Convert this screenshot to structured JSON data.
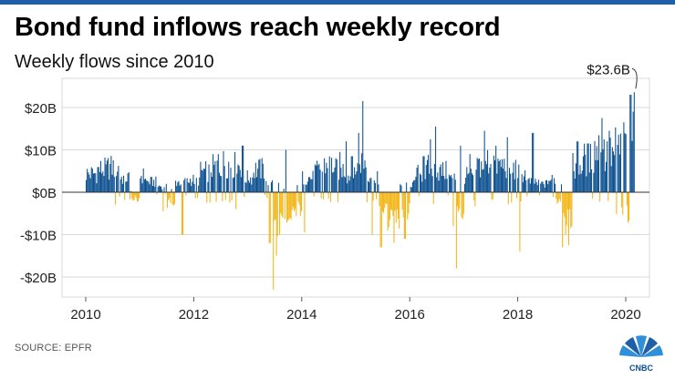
{
  "header": {
    "title": "Bond fund inflows reach weekly record",
    "subtitle": "Weekly flows since 2010"
  },
  "footer": {
    "source": "SOURCE: EPFR",
    "logo_text": "CNBC"
  },
  "colors": {
    "positive": "#0a4f8f",
    "negative": "#f3b515",
    "accent_bar": "#1f5fa8",
    "grid": "#d9d9d9"
  },
  "chart_data": {
    "type": "bar",
    "x_start": 2010.0,
    "x_end": 2020.15,
    "xlim": [
      2009.8,
      2020.5
    ],
    "ylim": [
      -25,
      25
    ],
    "x_ticks": [
      2010,
      2012,
      2014,
      2016,
      2018,
      2020
    ],
    "x_tick_labels": [
      "2010",
      "2012",
      "2014",
      "2016",
      "2018",
      "2020"
    ],
    "y_ticks": [
      20,
      10,
      0,
      -10,
      -20
    ],
    "y_tick_labels": [
      "$20B",
      "$10B",
      "$0B",
      "-$10B",
      "-$20B"
    ],
    "annotation": {
      "text": "$23.6B",
      "x": 2020.15,
      "y": 23.6
    },
    "grid": true,
    "segments": [
      [
        2010.0,
        2010.2,
        4.5
      ],
      [
        2010.2,
        2010.4,
        5.5
      ],
      [
        2010.4,
        2010.6,
        6.0
      ],
      [
        2010.6,
        2010.8,
        3.5
      ],
      [
        2010.8,
        2011.0,
        -1.5
      ],
      [
        2011.0,
        2011.1,
        4.0
      ],
      [
        2011.1,
        2011.3,
        2.5
      ],
      [
        2011.3,
        2011.5,
        1.5
      ],
      [
        2011.5,
        2011.65,
        -2.5
      ],
      [
        2011.65,
        2011.9,
        2.5
      ],
      [
        2011.9,
        2012.1,
        3.0
      ],
      [
        2012.1,
        2012.3,
        5.0
      ],
      [
        2012.3,
        2012.5,
        6.0
      ],
      [
        2012.5,
        2012.7,
        7.0
      ],
      [
        2012.7,
        2012.9,
        6.5
      ],
      [
        2012.9,
        2013.1,
        3.5
      ],
      [
        2013.1,
        2013.3,
        5.5
      ],
      [
        2013.3,
        2013.45,
        3.0
      ],
      [
        2013.45,
        2013.6,
        -9.0
      ],
      [
        2013.6,
        2013.8,
        -5.0
      ],
      [
        2013.8,
        2014.0,
        -4.0
      ],
      [
        2014.0,
        2014.2,
        3.5
      ],
      [
        2014.2,
        2014.4,
        5.0
      ],
      [
        2014.4,
        2014.6,
        6.5
      ],
      [
        2014.6,
        2014.8,
        5.5
      ],
      [
        2014.8,
        2015.0,
        4.0
      ],
      [
        2015.0,
        2015.2,
        7.5
      ],
      [
        2015.2,
        2015.4,
        4.5
      ],
      [
        2015.4,
        2015.6,
        -3.5
      ],
      [
        2015.6,
        2015.8,
        -6.0
      ],
      [
        2015.8,
        2016.0,
        -4.5
      ],
      [
        2016.0,
        2016.1,
        2.0
      ],
      [
        2016.1,
        2016.3,
        4.5
      ],
      [
        2016.3,
        2016.5,
        6.0
      ],
      [
        2016.5,
        2016.7,
        5.0
      ],
      [
        2016.7,
        2016.85,
        3.5
      ],
      [
        2016.85,
        2017.0,
        -5.0
      ],
      [
        2017.0,
        2017.2,
        4.0
      ],
      [
        2017.2,
        2017.4,
        6.5
      ],
      [
        2017.4,
        2017.6,
        7.5
      ],
      [
        2017.6,
        2017.8,
        6.5
      ],
      [
        2017.8,
        2018.0,
        5.5
      ],
      [
        2018.0,
        2018.15,
        4.5
      ],
      [
        2018.15,
        2018.35,
        2.5
      ],
      [
        2018.35,
        2018.55,
        2.0
      ],
      [
        2018.55,
        2018.7,
        3.0
      ],
      [
        2018.7,
        2018.8,
        -2.5
      ],
      [
        2018.8,
        2019.0,
        -7.0
      ],
      [
        2019.0,
        2019.2,
        6.5
      ],
      [
        2019.2,
        2019.4,
        8.0
      ],
      [
        2019.4,
        2019.6,
        10.5
      ],
      [
        2019.6,
        2019.8,
        9.0
      ],
      [
        2019.8,
        2020.0,
        11.0
      ],
      [
        2020.0,
        2020.15,
        14.0
      ]
    ],
    "spikes": [
      [
        2013.46,
        23.0,
        -1
      ],
      [
        2013.52,
        15.0,
        -1
      ],
      [
        2013.4,
        12.0,
        -1
      ],
      [
        2013.58,
        10.0,
        -1
      ],
      [
        2016.86,
        18.0,
        -1
      ],
      [
        2016.8,
        8.0,
        -1
      ],
      [
        2015.3,
        10.0,
        -1
      ],
      [
        2015.46,
        13.0,
        -1
      ],
      [
        2015.7,
        12.0,
        -1
      ],
      [
        2015.58,
        9.0,
        -1
      ],
      [
        2015.9,
        11.0,
        -1
      ],
      [
        2014.04,
        9.5,
        -1
      ],
      [
        2011.78,
        10.0,
        -1
      ],
      [
        2011.42,
        4.5,
        -1
      ],
      [
        2012.78,
        4.0,
        -1
      ],
      [
        2018.03,
        14.0,
        -1
      ],
      [
        2018.82,
        13.0,
        -1
      ],
      [
        2018.88,
        10.0,
        -1
      ],
      [
        2018.94,
        12.5,
        -1
      ],
      [
        2019.0,
        8.0,
        -1
      ],
      [
        2015.12,
        21.5,
        1
      ],
      [
        2013.4,
        13.5,
        1
      ],
      [
        2020.08,
        23.0,
        1
      ],
      [
        2020.15,
        23.6,
        1
      ],
      [
        2019.95,
        16.5,
        1
      ],
      [
        2019.55,
        17.5,
        1
      ],
      [
        2019.68,
        14.5,
        1
      ],
      [
        2016.47,
        15.5,
        1
      ],
      [
        2017.38,
        14.5,
        1
      ],
      [
        2017.8,
        13.0,
        1
      ],
      [
        2018.27,
        14.0,
        1
      ],
      [
        2015.04,
        14.0,
        1
      ],
      [
        2014.82,
        12.0,
        1
      ],
      [
        2014.7,
        9.5,
        1
      ],
      [
        2012.9,
        11.0,
        1
      ],
      [
        2013.7,
        10.0,
        1
      ],
      [
        2014.92,
        8.5,
        1
      ],
      [
        2016.37,
        12.5,
        1
      ],
      [
        2019.3,
        11.5,
        1
      ],
      [
        2019.1,
        12.0,
        1
      ],
      [
        2016.25,
        8.5,
        1
      ],
      [
        2017.1,
        9.0,
        1
      ],
      [
        2012.45,
        9.0,
        1
      ],
      [
        2016.93,
        11.0,
        1
      ]
    ]
  }
}
